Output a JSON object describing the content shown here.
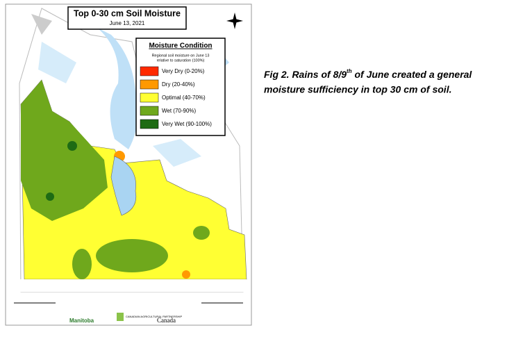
{
  "map": {
    "title": "Top 0-30 cm Soil Moisture",
    "date": "June 13, 2021",
    "legend": {
      "title": "Moisture Condition",
      "subtitle": [
        "Regional soil moisture on June 13",
        "relative to saturation (100%)"
      ],
      "items": [
        {
          "label": "Very Dry (0-20%)",
          "color": "#ff2a00"
        },
        {
          "label": "Dry (20-40%)",
          "color": "#ff9900"
        },
        {
          "label": "Optimal (40-70%)",
          "color": "#ffff33"
        },
        {
          "label": "Wet (70-90%)",
          "color": "#6fa81c"
        },
        {
          "label": "Very Wet (90-100%)",
          "color": "#1e6b14"
        }
      ]
    },
    "footer": {
      "province": "Manitoba",
      "partnership": "CANADIAN AGRICULTURAL PARTNERSHIP",
      "country": "Canada"
    }
  },
  "caption": {
    "line1": [
      "Fig 2. Rains of 8/9",
      "th",
      " of June created  a general"
    ],
    "line2": "moisture sufficiency in top 30 cm of soil."
  }
}
